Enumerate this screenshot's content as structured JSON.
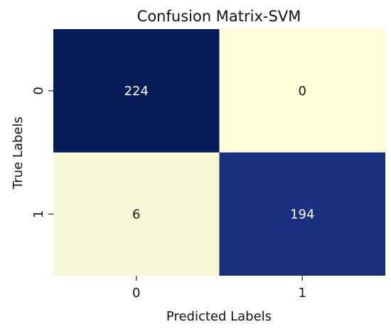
{
  "chart_data": {
    "type": "heatmap",
    "title": "Confusion Matrix-SVM",
    "xlabel": "Predicted Labels",
    "ylabel": "True Labels",
    "x_categories": [
      "0",
      "1"
    ],
    "y_categories": [
      "0",
      "1"
    ],
    "values": [
      [
        224,
        0
      ],
      [
        6,
        194
      ]
    ],
    "colorscale": "YlGnBu",
    "colorbar": false,
    "annotations": true,
    "colors": {
      "high": "#081d58",
      "mid_high": "#23398f",
      "low": "#ffffd9",
      "text_on_dark": "#ffffff",
      "text_on_light": "#1a1a1a"
    }
  }
}
